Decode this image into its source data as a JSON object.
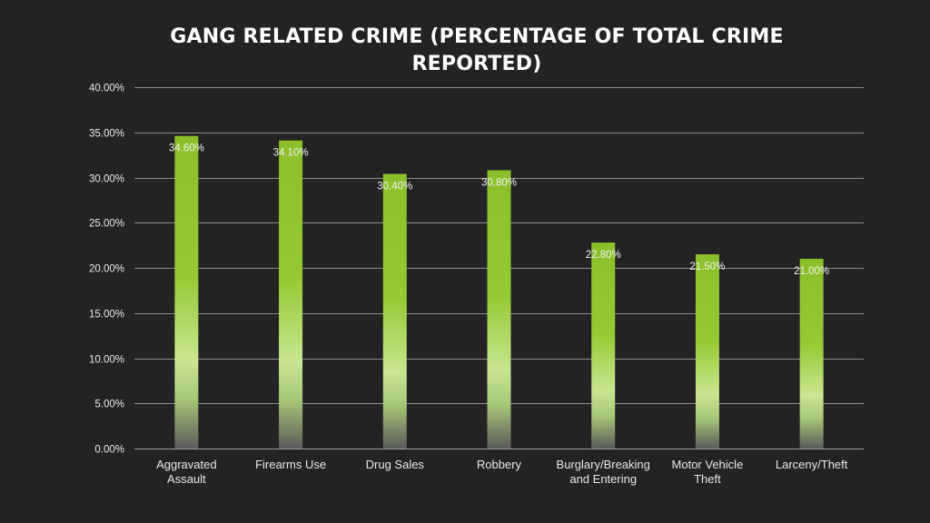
{
  "chart_data": {
    "type": "bar",
    "title": "GANG RELATED CRIME (PERCENTAGE OF TOTAL CRIME REPORTED)",
    "categories": [
      [
        "Aggravated",
        "Assault"
      ],
      [
        "Firearms Use"
      ],
      [
        "Drug Sales"
      ],
      [
        "Robbery"
      ],
      [
        "Burglary/Breaking",
        "and Entering"
      ],
      [
        "Motor Vehicle",
        "Theft"
      ],
      [
        "Larceny/Theft"
      ]
    ],
    "values": [
      34.6,
      34.1,
      30.4,
      30.8,
      22.8,
      21.5,
      21.0
    ],
    "data_labels": [
      "34.60%",
      "34.10%",
      "30.40%",
      "30.80%",
      "22.80%",
      "21.50%",
      "21.00%"
    ],
    "y_ticks": [
      "0.00%",
      "5.00%",
      "10.00%",
      "15.00%",
      "20.00%",
      "25.00%",
      "30.00%",
      "35.00%",
      "40.00%"
    ],
    "ylim": [
      0,
      40
    ],
    "xlabel": "",
    "ylabel": "",
    "grid": true,
    "legend": "none",
    "colors": {
      "background": "#232323",
      "bar_top": "#8cbf2a",
      "bar_light": "#c9e690",
      "bar_bottom": "#5a5a5a",
      "text": "#e8e8e8",
      "grid": "#8c8c8c"
    }
  }
}
